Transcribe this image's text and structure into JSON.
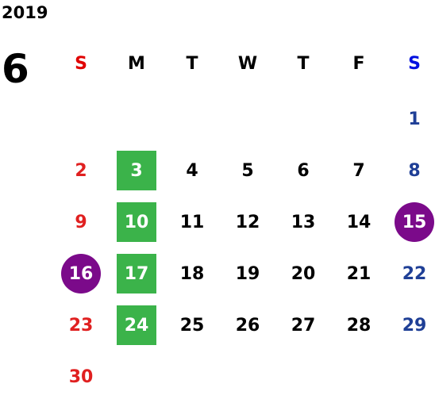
{
  "year": "2019",
  "month": "6",
  "weekdays": [
    "S",
    "M",
    "T",
    "W",
    "T",
    "F",
    "S"
  ],
  "weeks": [
    [
      null,
      null,
      null,
      null,
      null,
      null,
      1
    ],
    [
      2,
      3,
      4,
      5,
      6,
      7,
      8
    ],
    [
      9,
      10,
      11,
      12,
      13,
      14,
      15
    ],
    [
      16,
      17,
      18,
      19,
      20,
      21,
      22
    ],
    [
      23,
      24,
      25,
      26,
      27,
      28,
      29
    ],
    [
      30,
      null,
      null,
      null,
      null,
      null,
      null
    ]
  ]
}
